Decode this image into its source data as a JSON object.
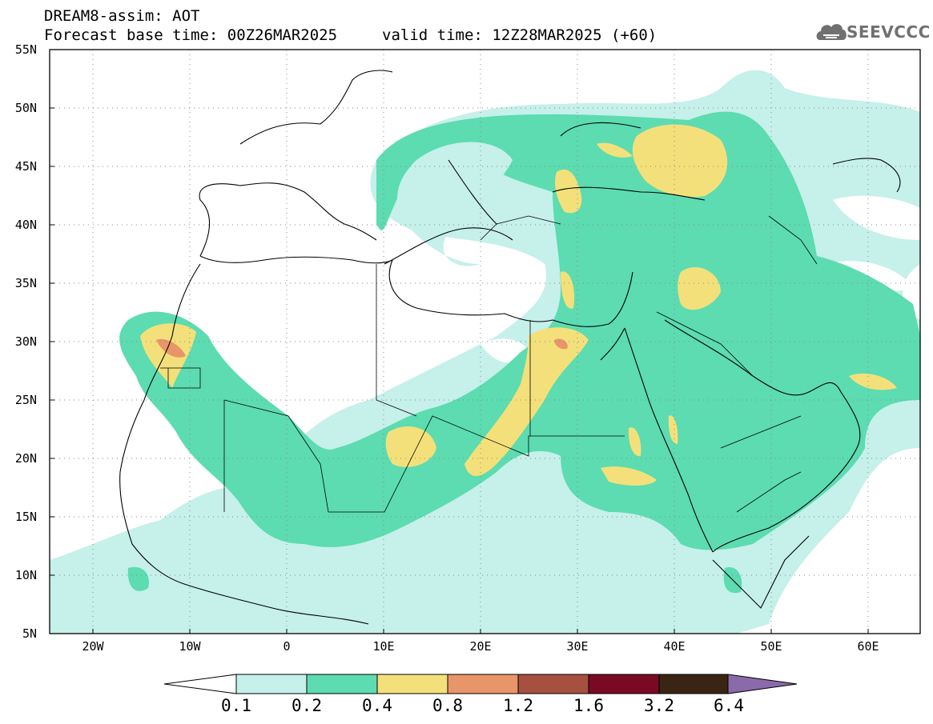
{
  "header": {
    "title_line1": "DREAM8-assim: AOT",
    "forecast_base": "Forecast base time: 00Z26MAR2025",
    "valid_time": "valid time: 12Z28MAR2025 (+60)",
    "logo_text": "SEEVCCC",
    "logo_icon": "cloud-icon"
  },
  "map": {
    "lat_labels": [
      "55N",
      "50N",
      "45N",
      "40N",
      "35N",
      "30N",
      "25N",
      "20N",
      "15N",
      "10N",
      "5N"
    ],
    "lon_labels": [
      "20W",
      "10W",
      "0",
      "10E",
      "20E",
      "30E",
      "40E",
      "50E",
      "60E"
    ],
    "lat_range": [
      5,
      55
    ],
    "lon_range": [
      -25,
      65
    ],
    "grid": "dotted"
  },
  "colorbar": {
    "labels": [
      "0.1",
      "0.2",
      "0.4",
      "0.8",
      "1.2",
      "1.6",
      "3.2",
      "6.4"
    ],
    "colors": [
      "#ffffff",
      "#c6f0ea",
      "#5cdcb0",
      "#f4e07a",
      "#e8956a",
      "#a65040",
      "#7a0a24",
      "#3a2414",
      "#8a6aaa"
    ]
  }
}
